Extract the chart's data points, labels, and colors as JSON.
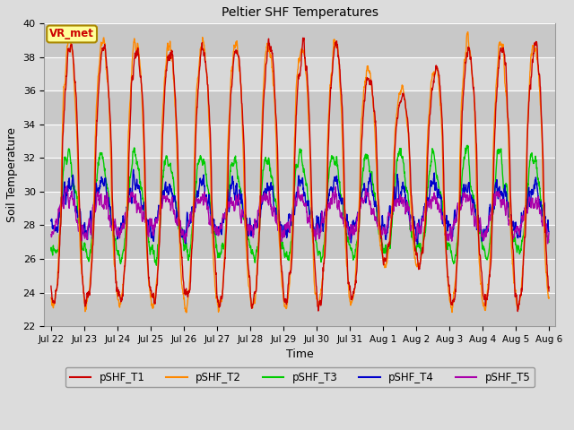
{
  "title": "Peltier SHF Temperatures",
  "xlabel": "Time",
  "ylabel": "Soil Temperature",
  "ylim": [
    22,
    40
  ],
  "background_color": "#dcdcdc",
  "plot_bg_color": "#dcdcdc",
  "grid_color": "#ffffff",
  "colors": {
    "T1": "#cc0000",
    "T2": "#ff8800",
    "T3": "#00cc00",
    "T4": "#0000cc",
    "T5": "#aa00aa"
  },
  "legend_labels": [
    "pSHF_T1",
    "pSHF_T2",
    "pSHF_T3",
    "pSHF_T4",
    "pSHF_T5"
  ],
  "annotation_text": "VR_met",
  "annotation_bg": "#ffff99",
  "annotation_border": "#aa8800",
  "tick_labels": [
    "Jul 22",
    "Jul 23",
    "Jul 24",
    "Jul 25",
    "Jul 26",
    "Jul 27",
    "Jul 28",
    "Jul 29",
    "Jul 30",
    "Jul 31",
    "Aug 1",
    "Aug 2",
    "Aug 3",
    "Aug 4",
    "Aug 5",
    "Aug 6"
  ],
  "tick_positions": [
    0,
    1,
    2,
    3,
    4,
    5,
    6,
    7,
    8,
    9,
    10,
    11,
    12,
    13,
    14,
    15
  ],
  "yticks": [
    22,
    24,
    26,
    28,
    30,
    32,
    34,
    36,
    38,
    40
  ],
  "linewidth": 1.0,
  "figsize": [
    6.4,
    4.8
  ],
  "dpi": 100
}
